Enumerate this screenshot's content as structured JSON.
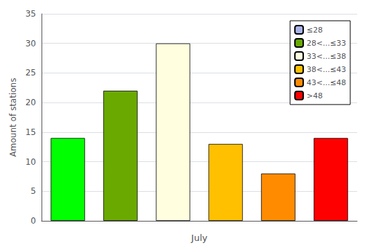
{
  "chart_data": {
    "type": "bar",
    "xlabel": "July",
    "ylabel": "Amount of stations",
    "categories": [
      null,
      null,
      null,
      null,
      null,
      null
    ],
    "colors": [
      "#00ff00",
      "#6aaa00",
      "#ffffe0",
      "#ffc000",
      "#ff8c00",
      "#ff0000"
    ],
    "series": [
      {
        "name": "≤28",
        "color": "#aab4e8",
        "values": [
          14,
          null,
          null,
          null,
          null,
          null
        ]
      },
      {
        "name": "28<...≤33",
        "color": "#6aaa00",
        "values": [
          null,
          22,
          null,
          null,
          null,
          null
        ]
      },
      {
        "name": "33<...≤38",
        "color": "#ffffe0",
        "values": [
          null,
          null,
          30,
          null,
          null,
          null
        ]
      },
      {
        "name": "38<...≤43",
        "color": "#ffc000",
        "values": [
          null,
          null,
          null,
          13,
          null,
          null
        ]
      },
      {
        "name": "43<...≤48",
        "color": "#ff8c00",
        "values": [
          null,
          null,
          null,
          null,
          8,
          null
        ]
      },
      {
        "name": ">48",
        "color": "#ff0000",
        "values": [
          null,
          null,
          null,
          null,
          null,
          14
        ]
      }
    ],
    "ylim": [
      0,
      35
    ],
    "yticks": [
      0,
      5,
      10,
      15,
      20,
      25,
      30,
      35
    ],
    "grid": true,
    "legend": "upper right",
    "tick_labels": "y"
  }
}
